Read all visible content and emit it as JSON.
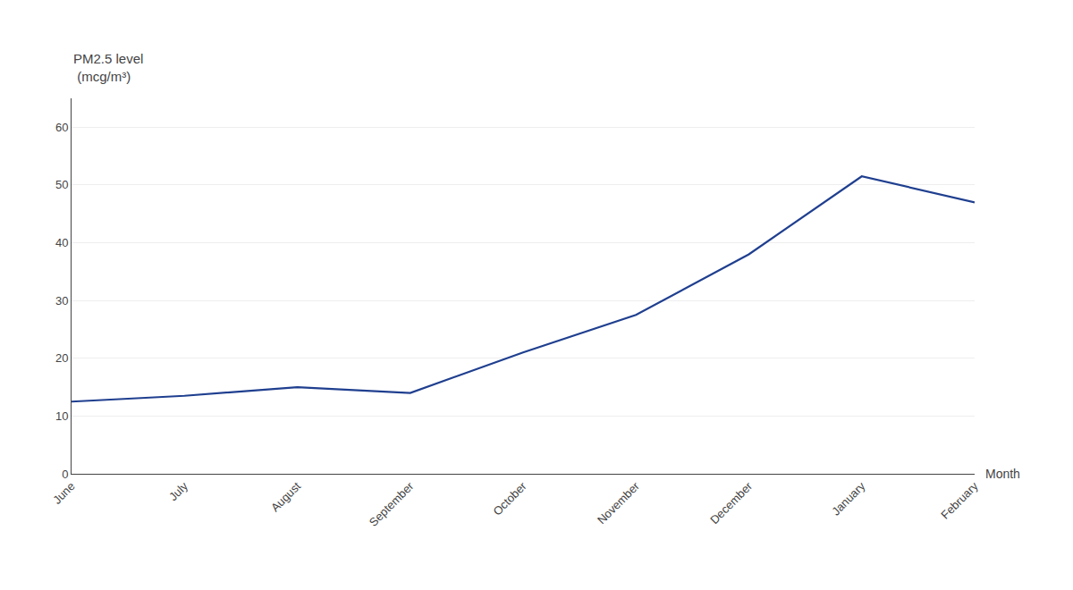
{
  "chart_data": {
    "type": "line",
    "categories": [
      "June",
      "July",
      "August",
      "September",
      "October",
      "November",
      "December",
      "January",
      "February"
    ],
    "values": [
      12.5,
      13.5,
      15.0,
      14.0,
      21.0,
      27.5,
      38.0,
      51.5,
      47.0
    ],
    "color": "#1F3F8F",
    "ylabel": [
      "PM2.5 level",
      " (mcg/m³)"
    ],
    "xlabel": "Month",
    "ylim": [
      0,
      65
    ],
    "yticks": [
      0,
      10,
      20,
      30,
      40,
      50,
      60
    ],
    "grid": true
  }
}
